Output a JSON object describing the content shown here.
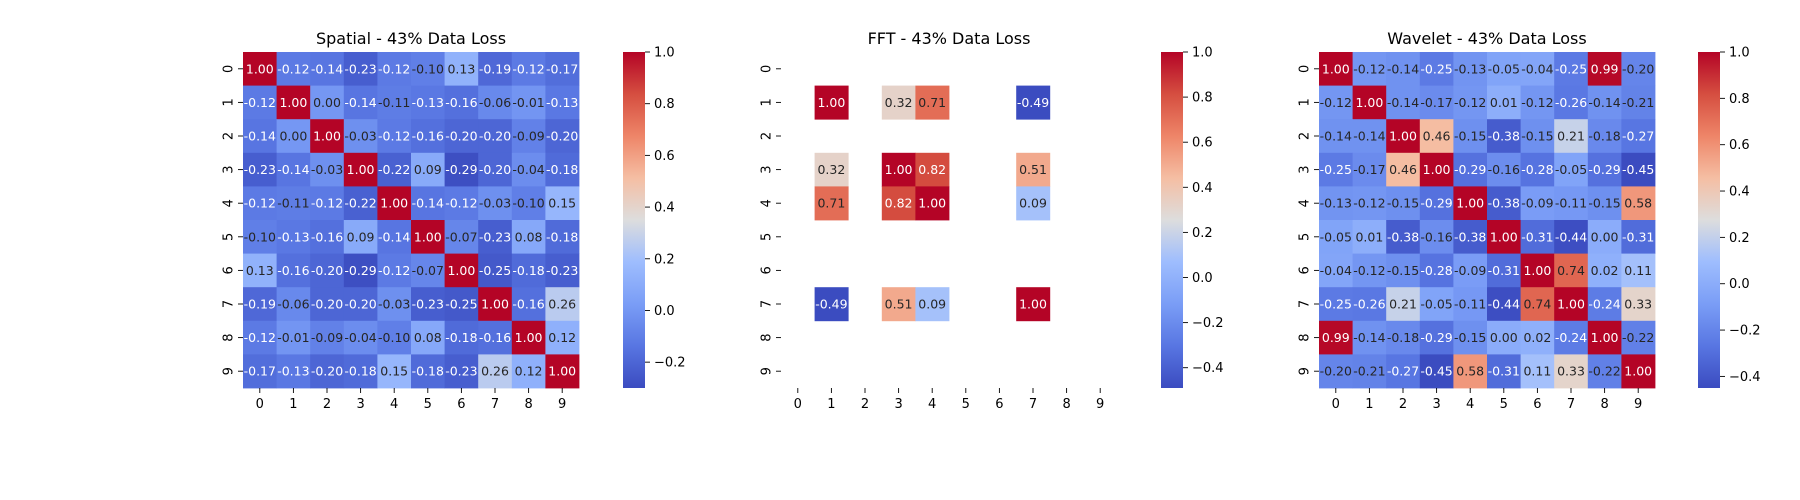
{
  "chart_data": [
    {
      "type": "heatmap",
      "title": "Spatial - 43% Data Loss",
      "x_labels": [
        "0",
        "1",
        "2",
        "3",
        "4",
        "5",
        "6",
        "7",
        "8",
        "9"
      ],
      "y_labels": [
        "0",
        "1",
        "2",
        "3",
        "4",
        "5",
        "6",
        "7",
        "8",
        "9"
      ],
      "colormap": "coolwarm",
      "vmin": -0.3,
      "vmax": 1.0,
      "colorbar_ticks": [
        -0.2,
        0.0,
        0.2,
        0.4,
        0.6,
        0.8,
        1.0
      ],
      "values": [
        [
          1.0,
          -0.12,
          -0.14,
          -0.23,
          -0.12,
          -0.1,
          0.13,
          -0.19,
          -0.12,
          -0.17
        ],
        [
          -0.12,
          1.0,
          -0.0,
          -0.14,
          -0.11,
          -0.13,
          -0.16,
          -0.06,
          -0.01,
          -0.13
        ],
        [
          -0.14,
          -0.0,
          1.0,
          -0.03,
          -0.12,
          -0.16,
          -0.2,
          -0.2,
          -0.09,
          -0.2
        ],
        [
          -0.23,
          -0.14,
          -0.03,
          1.0,
          -0.22,
          0.09,
          -0.29,
          -0.2,
          -0.04,
          -0.18
        ],
        [
          -0.12,
          -0.11,
          -0.12,
          -0.22,
          1.0,
          -0.14,
          -0.12,
          -0.03,
          -0.1,
          0.15
        ],
        [
          -0.1,
          -0.13,
          -0.16,
          0.09,
          -0.14,
          1.0,
          -0.07,
          -0.23,
          0.08,
          -0.18
        ],
        [
          0.13,
          -0.16,
          -0.2,
          -0.29,
          -0.12,
          -0.07,
          1.0,
          -0.25,
          -0.18,
          -0.23
        ],
        [
          -0.19,
          -0.06,
          -0.2,
          -0.2,
          -0.03,
          -0.23,
          -0.25,
          1.0,
          -0.16,
          0.26
        ],
        [
          -0.12,
          -0.01,
          -0.09,
          -0.04,
          -0.1,
          0.08,
          -0.18,
          -0.16,
          1.0,
          0.12
        ],
        [
          -0.17,
          -0.13,
          -0.2,
          -0.18,
          0.15,
          -0.18,
          -0.23,
          0.26,
          0.12,
          1.0
        ]
      ]
    },
    {
      "type": "heatmap",
      "title": "FFT - 43% Data Loss",
      "x_labels": [
        "0",
        "1",
        "2",
        "3",
        "4",
        "5",
        "6",
        "7",
        "8",
        "9"
      ],
      "y_labels": [
        "0",
        "1",
        "2",
        "3",
        "4",
        "5",
        "6",
        "7",
        "8",
        "9"
      ],
      "colormap": "coolwarm",
      "vmin": -0.49,
      "vmax": 1.0,
      "colorbar_ticks": [
        -0.4,
        -0.2,
        0.0,
        0.2,
        0.4,
        0.6,
        0.8,
        1.0
      ],
      "values": [
        [
          null,
          null,
          null,
          null,
          null,
          null,
          null,
          null,
          null,
          null
        ],
        [
          null,
          1.0,
          null,
          0.32,
          0.71,
          null,
          null,
          -0.49,
          null,
          null
        ],
        [
          null,
          null,
          null,
          null,
          null,
          null,
          null,
          null,
          null,
          null
        ],
        [
          null,
          0.32,
          null,
          1.0,
          0.82,
          null,
          null,
          0.51,
          null,
          null
        ],
        [
          null,
          0.71,
          null,
          0.82,
          1.0,
          null,
          null,
          0.09,
          null,
          null
        ],
        [
          null,
          null,
          null,
          null,
          null,
          null,
          null,
          null,
          null,
          null
        ],
        [
          null,
          null,
          null,
          null,
          null,
          null,
          null,
          null,
          null,
          null
        ],
        [
          null,
          -0.49,
          null,
          0.51,
          0.09,
          null,
          null,
          1.0,
          null,
          null
        ],
        [
          null,
          null,
          null,
          null,
          null,
          null,
          null,
          null,
          null,
          null
        ],
        [
          null,
          null,
          null,
          null,
          null,
          null,
          null,
          null,
          null,
          null
        ]
      ]
    },
    {
      "type": "heatmap",
      "title": "Wavelet - 43% Data Loss",
      "x_labels": [
        "0",
        "1",
        "2",
        "3",
        "4",
        "5",
        "6",
        "7",
        "8",
        "9"
      ],
      "y_labels": [
        "0",
        "1",
        "2",
        "3",
        "4",
        "5",
        "6",
        "7",
        "8",
        "9"
      ],
      "colormap": "coolwarm",
      "vmin": -0.45,
      "vmax": 1.0,
      "colorbar_ticks": [
        -0.4,
        -0.2,
        0.0,
        0.2,
        0.4,
        0.6,
        0.8,
        1.0
      ],
      "values": [
        [
          1.0,
          -0.12,
          -0.14,
          -0.25,
          -0.13,
          -0.05,
          -0.04,
          -0.25,
          0.99,
          -0.2
        ],
        [
          -0.12,
          1.0,
          -0.14,
          -0.17,
          -0.12,
          0.01,
          -0.12,
          -0.26,
          -0.14,
          -0.21
        ],
        [
          -0.14,
          -0.14,
          1.0,
          0.46,
          -0.15,
          -0.38,
          -0.15,
          0.21,
          -0.18,
          -0.27
        ],
        [
          -0.25,
          -0.17,
          0.46,
          1.0,
          -0.29,
          -0.16,
          -0.28,
          -0.05,
          -0.29,
          -0.45
        ],
        [
          -0.13,
          -0.12,
          -0.15,
          -0.29,
          1.0,
          -0.38,
          -0.09,
          -0.11,
          -0.15,
          0.58
        ],
        [
          -0.05,
          0.01,
          -0.38,
          -0.16,
          -0.38,
          1.0,
          -0.31,
          -0.44,
          0.0,
          -0.31
        ],
        [
          -0.04,
          -0.12,
          -0.15,
          -0.28,
          -0.09,
          -0.31,
          1.0,
          0.74,
          0.02,
          0.11
        ],
        [
          -0.25,
          -0.26,
          0.21,
          -0.05,
          -0.11,
          -0.44,
          0.74,
          1.0,
          -0.24,
          0.33
        ],
        [
          0.99,
          -0.14,
          -0.18,
          -0.29,
          -0.15,
          0.0,
          0.02,
          -0.24,
          1.0,
          -0.22
        ],
        [
          -0.2,
          -0.21,
          -0.27,
          -0.45,
          0.58,
          -0.31,
          0.11,
          0.33,
          -0.22,
          1.0
        ]
      ]
    }
  ]
}
